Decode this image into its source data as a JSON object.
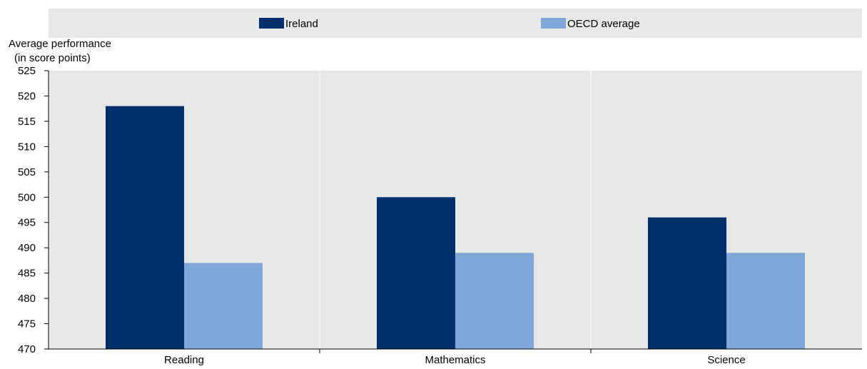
{
  "chart_data": {
    "type": "bar",
    "categories": [
      "Reading",
      "Mathematics",
      "Science"
    ],
    "series": [
      {
        "name": "Ireland",
        "values": [
          518,
          500,
          496
        ],
        "color": "#002F6C"
      },
      {
        "name": "OECD average",
        "values": [
          487,
          489,
          489
        ],
        "color": "#7FA8D9"
      }
    ],
    "ylabel_lines": [
      "Average performance",
      "(in score points)"
    ],
    "ylim": [
      470,
      525
    ],
    "yticks": [
      470,
      475,
      480,
      485,
      490,
      495,
      500,
      505,
      510,
      515,
      520,
      525
    ],
    "legend_position": "top",
    "plot_background": "#E8E8E8",
    "grid": "vertical separators between categories"
  }
}
